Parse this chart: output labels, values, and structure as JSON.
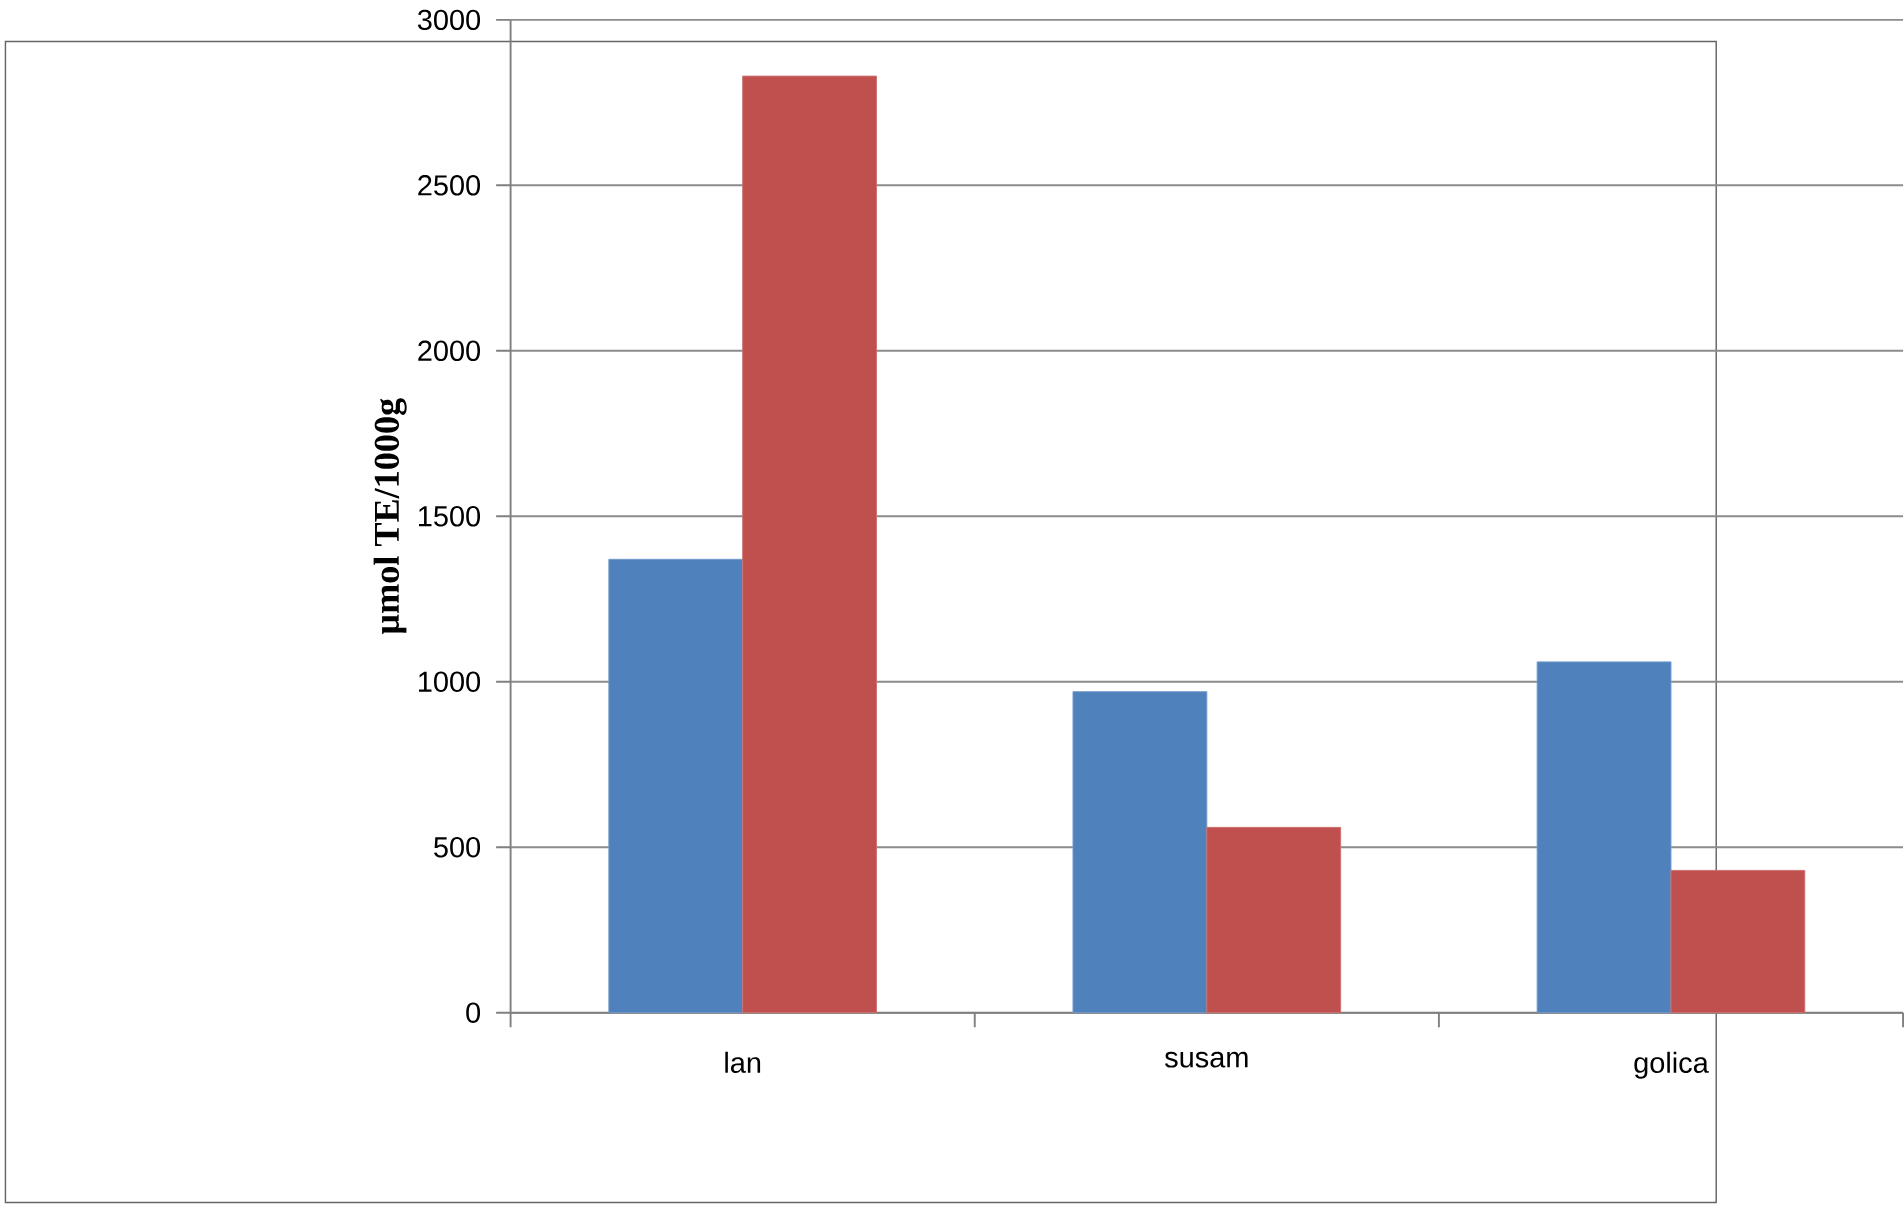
{
  "chart_data": {
    "type": "bar",
    "ylabel": "µmol TE/1000g",
    "categories": [
      "lan",
      "susam",
      "golica"
    ],
    "series": [
      {
        "color": "#4f81bd",
        "values": [
          1370,
          970,
          1060
        ]
      },
      {
        "color": "#c0504d",
        "values": [
          2830,
          560,
          430
        ]
      }
    ],
    "ylim": [
      0,
      3000
    ],
    "yticks": [
      0,
      500,
      1000,
      1500,
      2000,
      2500,
      3000
    ],
    "grid": "y"
  }
}
